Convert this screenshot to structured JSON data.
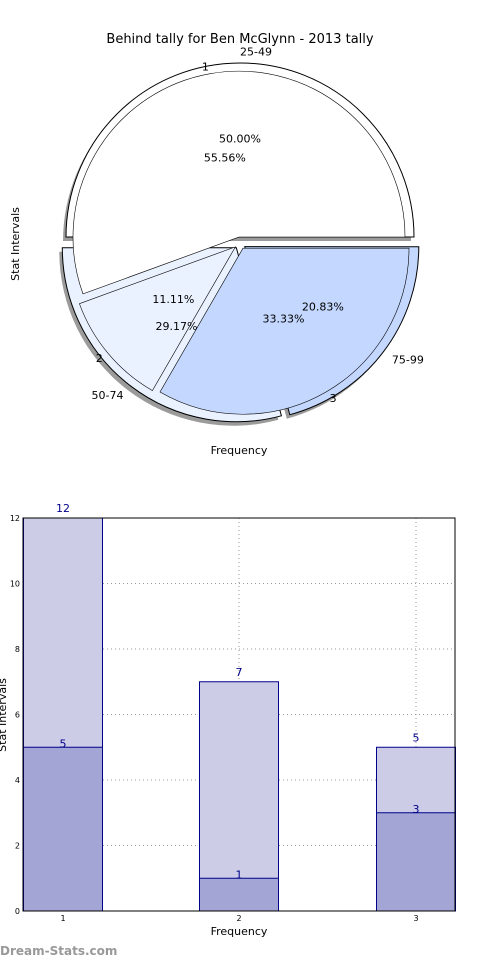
{
  "colors": {
    "pie_white": "#ffffff",
    "pie_pale": "#eaf2ff",
    "pie_blue": "#c3d7ff",
    "bar_top": "#cccce6",
    "bar_bottom": "#a3a6d4",
    "bar_edge": "#00008b",
    "grid": "#999999",
    "watermark": "#999999"
  },
  "chart_data": [
    {
      "type": "pie",
      "title": "Behind tally for Ben McGlynn - 2013 tally",
      "xlabel": "Frequency",
      "ylabel": "Stat Intervals",
      "shadow": true,
      "outer": {
        "labels": [
          "25-49",
          "50-74",
          "75-99"
        ],
        "percent_labels": [
          "50.00%",
          "29.17%",
          "20.83%"
        ],
        "values": [
          50.0,
          29.17,
          20.83
        ]
      },
      "inner": {
        "labels": [
          "1",
          "2",
          "3"
        ],
        "percent_labels": [
          "55.56%",
          "11.11%",
          "33.33%"
        ],
        "values": [
          55.56,
          11.11,
          33.33
        ]
      }
    },
    {
      "type": "bar",
      "xlabel": "Frequency",
      "ylabel": "Stat Intervals",
      "categories": [
        "1",
        "2",
        "3"
      ],
      "series": [
        {
          "values": [
            12,
            7,
            5
          ]
        },
        {
          "values": [
            5,
            1,
            3
          ]
        }
      ],
      "ylim": [
        0,
        12
      ],
      "yticks": [
        "0",
        "2",
        "4",
        "6",
        "8",
        "10",
        "12"
      ],
      "grid": true
    }
  ],
  "watermark": "Dream-Stats.com"
}
